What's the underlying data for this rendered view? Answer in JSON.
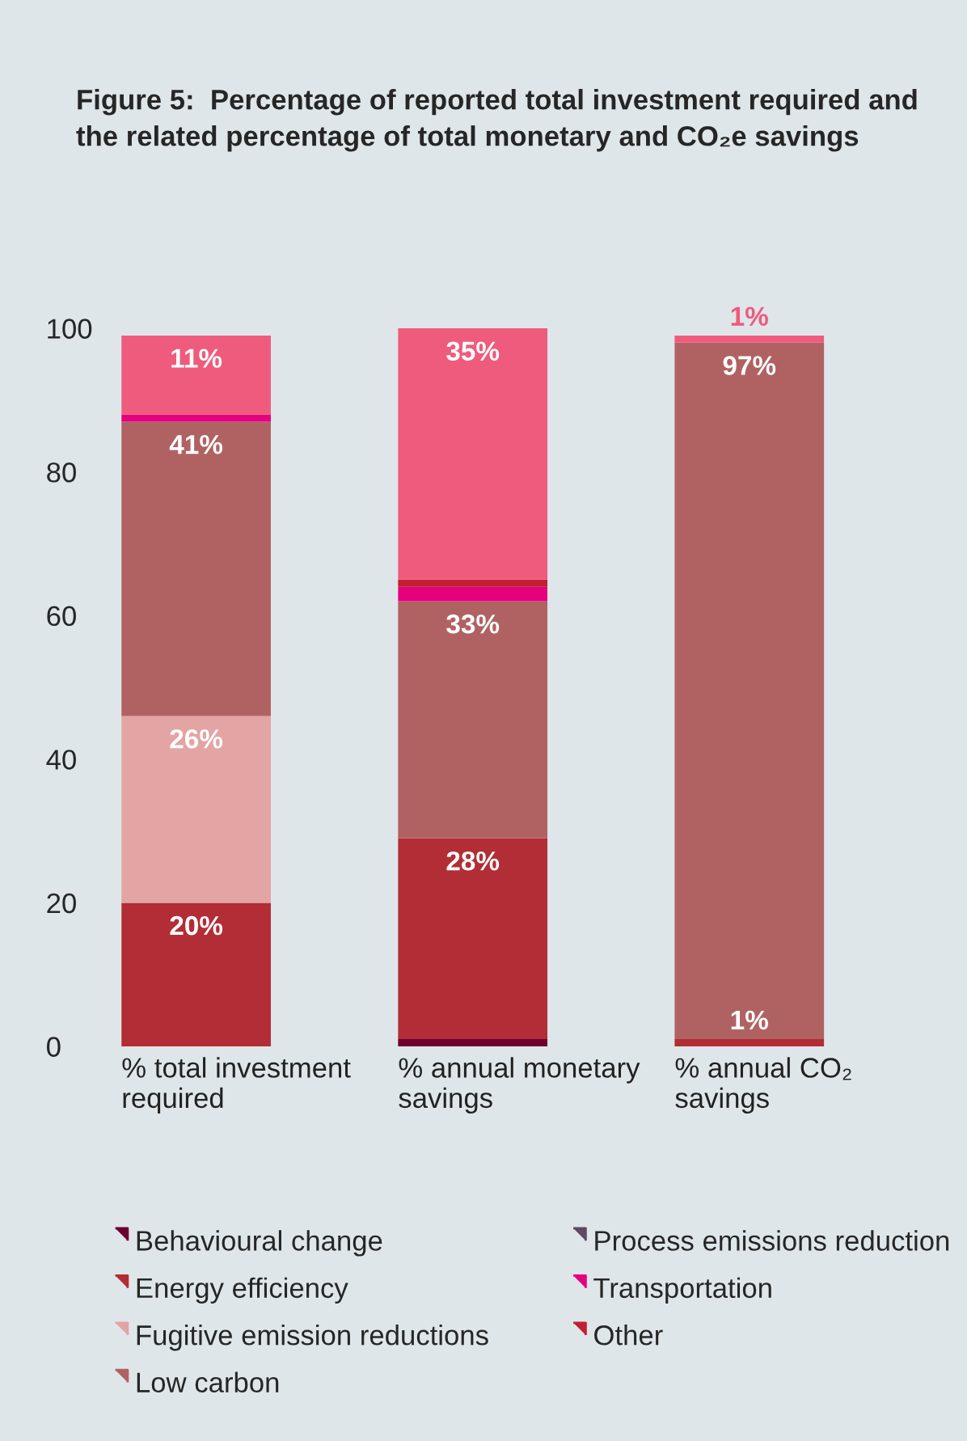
{
  "chart_data": {
    "type": "bar",
    "stacked": true,
    "title": "Figure 5:  Percentage of reported total investment required and the related percentage of total monetary and CO₂e savings",
    "categories": [
      "% total investment required",
      "% annual monetary savings",
      "% annual CO₂ savings"
    ],
    "ylim": [
      0,
      100
    ],
    "yticks": [
      0,
      20,
      40,
      60,
      80,
      100
    ],
    "grid": false,
    "legend": "bottom",
    "series": [
      {
        "name": "Behavioural change",
        "color": "#6d0030",
        "values": [
          null,
          1,
          null
        ],
        "value_labels": [
          null,
          null,
          null
        ]
      },
      {
        "name": "Energy efficiency",
        "color": "#b22d35",
        "values": [
          20,
          28,
          1
        ],
        "value_labels": [
          "20%",
          "28%",
          "1%"
        ]
      },
      {
        "name": "Fugitive emission reductions",
        "color": "#e3a4a4",
        "values": [
          26,
          null,
          null
        ],
        "value_labels": [
          "26%",
          null,
          null
        ]
      },
      {
        "name": "Low carbon",
        "color": "#b06262",
        "values": [
          41,
          33,
          97
        ],
        "value_labels": [
          "41%",
          "33%",
          "97%"
        ]
      },
      {
        "name": "Process emissions reduction",
        "color": "#5e4a63",
        "values": [
          null,
          null,
          null
        ],
        "value_labels": [
          null,
          null,
          null
        ]
      },
      {
        "name": "Transportation",
        "color": "#e6007e",
        "values": [
          1,
          2,
          null
        ],
        "value_labels": [
          null,
          null,
          null
        ]
      },
      {
        "name": "Other",
        "color": "#c21f32",
        "values": [
          null,
          1,
          null
        ],
        "value_labels": [
          null,
          null,
          null
        ]
      },
      {
        "color": "#ef5b7d",
        "values": [
          11,
          35,
          1
        ],
        "value_labels": [
          "11%",
          "35%",
          "1%"
        ]
      }
    ]
  }
}
